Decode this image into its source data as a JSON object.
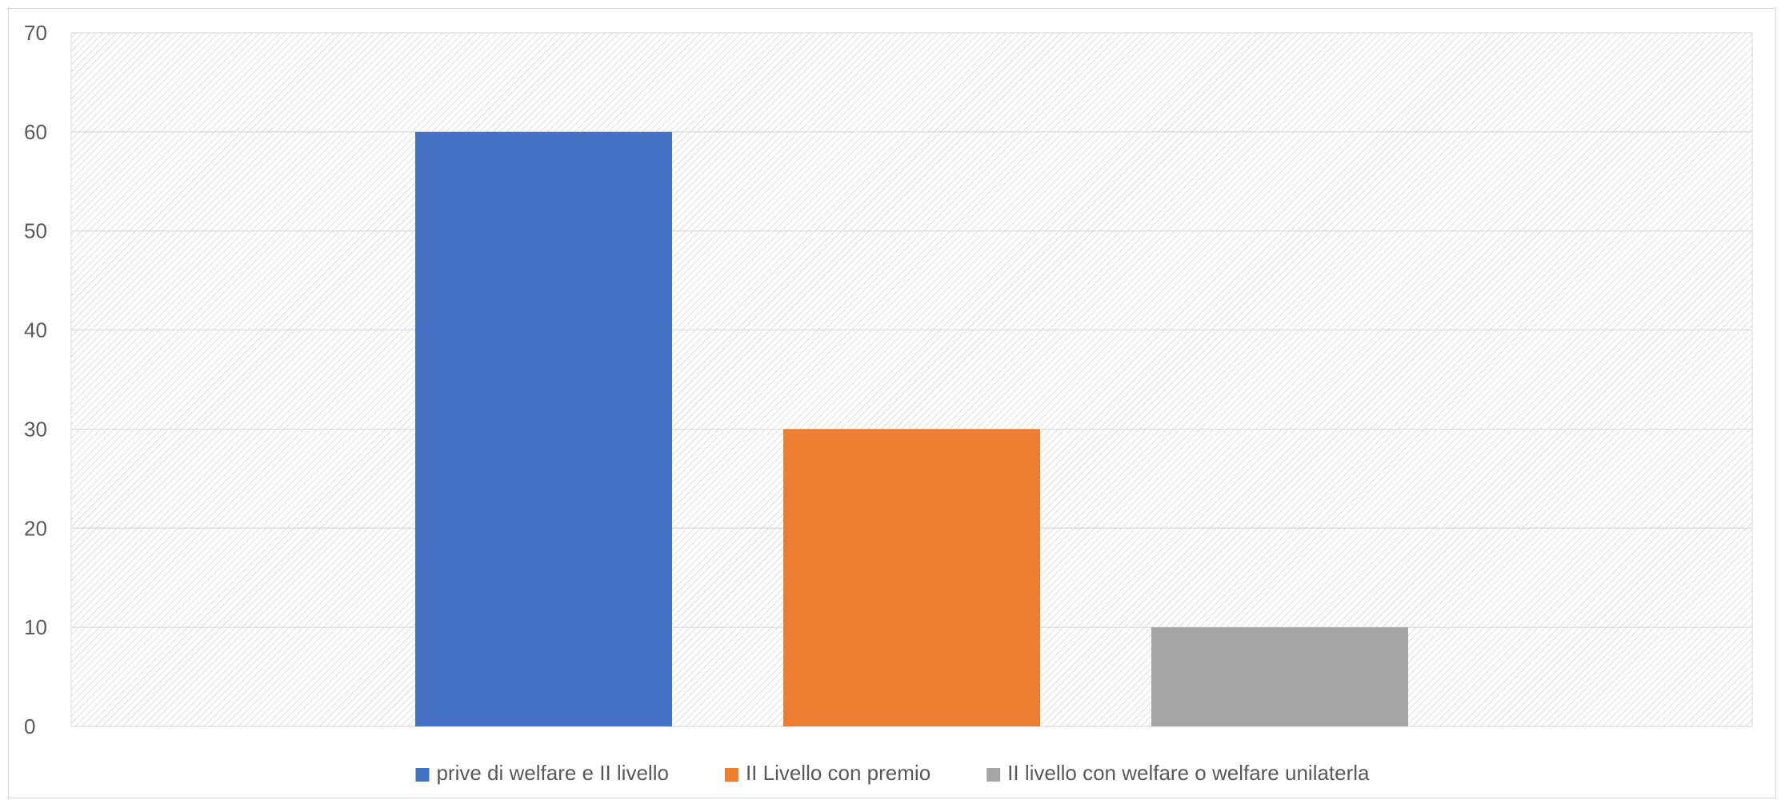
{
  "chart_data": {
    "type": "bar",
    "title": "",
    "xlabel": "",
    "ylabel": "",
    "ylim": [
      0,
      70
    ],
    "yticks": [
      0,
      10,
      20,
      30,
      40,
      50,
      60,
      70
    ],
    "grid": true,
    "legend_position": "bottom",
    "series": [
      {
        "name": "prive di welfare e II livello",
        "value": 60,
        "color": "#4472C4"
      },
      {
        "name": "II Livello con premio",
        "value": 30,
        "color": "#ED7D31"
      },
      {
        "name": "II livello con welfare o welfare unilaterla",
        "value": 10,
        "color": "#A5A5A5"
      }
    ]
  }
}
